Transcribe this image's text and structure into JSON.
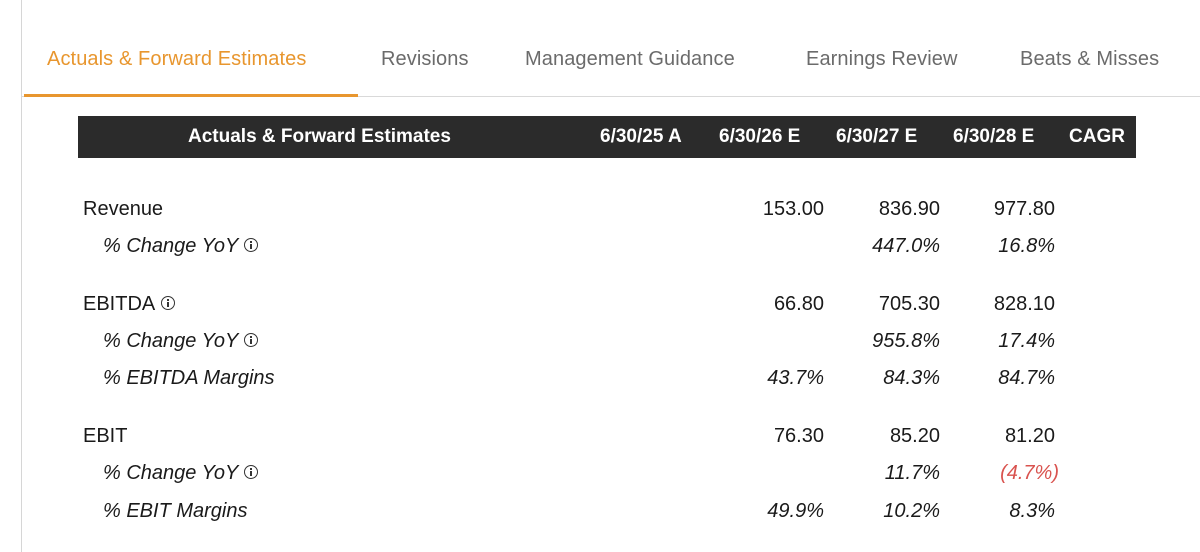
{
  "tabs": [
    {
      "label": "Actuals & Forward Estimates",
      "active": true
    },
    {
      "label": "Revisions",
      "active": false
    },
    {
      "label": "Management Guidance",
      "active": false
    },
    {
      "label": "Earnings Review",
      "active": false
    },
    {
      "label": "Beats & Misses",
      "active": false
    }
  ],
  "accent_color": "#e8962e",
  "negative_color": "#d9534f",
  "table": {
    "title": "Actuals & Forward Estimates",
    "columns": [
      "6/30/25 A",
      "6/30/26 E",
      "6/30/27 E",
      "6/30/28 E",
      "CAGR"
    ],
    "rows": [
      {
        "label": "Revenue",
        "values": [
          "",
          "153.00",
          "836.90",
          "977.80",
          ""
        ]
      },
      {
        "label": "% Change YoY",
        "values": [
          "",
          "",
          "447.0%",
          "16.8%",
          ""
        ]
      },
      {
        "label": "EBITDA",
        "values": [
          "",
          "66.80",
          "705.30",
          "828.10",
          ""
        ]
      },
      {
        "label": "% Change YoY",
        "values": [
          "",
          "",
          "955.8%",
          "17.4%",
          ""
        ]
      },
      {
        "label": "% EBITDA Margins",
        "values": [
          "",
          "43.7%",
          "84.3%",
          "84.7%",
          ""
        ]
      },
      {
        "label": "EBIT",
        "values": [
          "",
          "76.30",
          "85.20",
          "81.20",
          ""
        ]
      },
      {
        "label": "% Change YoY",
        "values": [
          "",
          "",
          "11.7%",
          "(4.7%)",
          ""
        ]
      },
      {
        "label": "% EBIT Margins",
        "values": [
          "",
          "49.9%",
          "10.2%",
          "8.3%",
          ""
        ]
      }
    ]
  }
}
